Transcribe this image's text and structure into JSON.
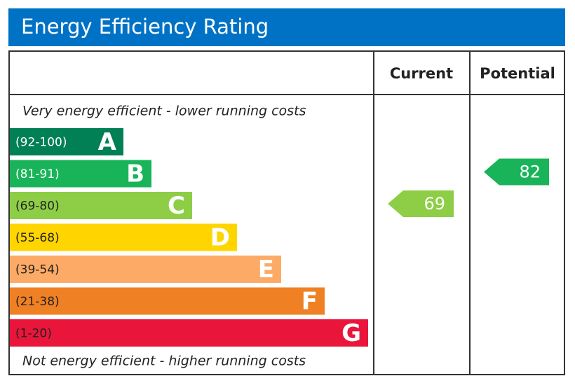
{
  "title": "Energy Efficiency Rating",
  "headers": {
    "current": "Current",
    "potential": "Potential"
  },
  "top_note": "Very energy efficient - lower running costs",
  "bottom_note": "Not energy efficient - higher running costs",
  "bands": [
    {
      "range": "(92-100)",
      "letter": "A",
      "color": "#008054",
      "text_color": "#ffffff"
    },
    {
      "range": "(81-91)",
      "letter": "B",
      "color": "#19b459",
      "text_color": "#ffffff"
    },
    {
      "range": "(69-80)",
      "letter": "C",
      "color": "#8dce46",
      "text_color": "#222222"
    },
    {
      "range": "(55-68)",
      "letter": "D",
      "color": "#ffd500",
      "text_color": "#222222"
    },
    {
      "range": "(39-54)",
      "letter": "E",
      "color": "#fcaa65",
      "text_color": "#222222"
    },
    {
      "range": "(21-38)",
      "letter": "F",
      "color": "#ef8023",
      "text_color": "#222222"
    },
    {
      "range": "(1-20)",
      "letter": "G",
      "color": "#e9153b",
      "text_color": "#222222"
    }
  ],
  "current": {
    "value": 69,
    "color": "#8dce46"
  },
  "potential": {
    "value": 82,
    "color": "#19b459"
  }
}
